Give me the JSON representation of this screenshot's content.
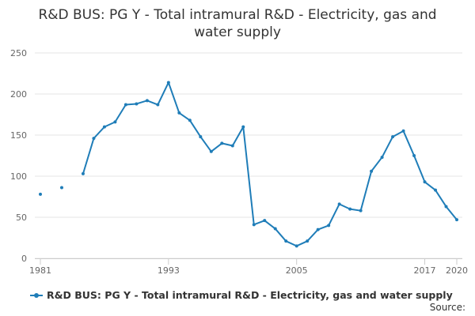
{
  "chart_data": {
    "type": "line",
    "title_line1": "R&D BUS: PG Y - Total intramural R&D - Electricity, gas and",
    "title_line2": "water supply",
    "xlabel": "",
    "ylabel": "",
    "ylim": [
      0,
      250
    ],
    "yticks": [
      "0",
      "50",
      "100",
      "150",
      "200",
      "250"
    ],
    "xticks": [
      "1981",
      "1993",
      "2005",
      "2017",
      "2020"
    ],
    "xlim": [
      1981,
      2020
    ],
    "grid": true,
    "legend_position": "bottom",
    "series": [
      {
        "name": "R&D BUS: PG Y - Total intramural R&D - Electricity, gas and water supply",
        "color": "#1f7db8",
        "points": [
          {
            "x": 1981,
            "y": 78
          },
          {
            "x": 1983,
            "y": 86
          },
          {
            "x": 1985,
            "y": 103
          },
          {
            "x": 1986,
            "y": 146
          },
          {
            "x": 1987,
            "y": 160
          },
          {
            "x": 1988,
            "y": 166
          },
          {
            "x": 1989,
            "y": 187
          },
          {
            "x": 1990,
            "y": 188
          },
          {
            "x": 1991,
            "y": 192
          },
          {
            "x": 1992,
            "y": 187
          },
          {
            "x": 1993,
            "y": 214
          },
          {
            "x": 1994,
            "y": 177
          },
          {
            "x": 1995,
            "y": 168
          },
          {
            "x": 1996,
            "y": 148
          },
          {
            "x": 1997,
            "y": 130
          },
          {
            "x": 1998,
            "y": 140
          },
          {
            "x": 1999,
            "y": 137
          },
          {
            "x": 2000,
            "y": 160
          },
          {
            "x": 2001,
            "y": 41
          },
          {
            "x": 2002,
            "y": 46
          },
          {
            "x": 2003,
            "y": 36
          },
          {
            "x": 2004,
            "y": 21
          },
          {
            "x": 2005,
            "y": 15
          },
          {
            "x": 2006,
            "y": 21
          },
          {
            "x": 2007,
            "y": 35
          },
          {
            "x": 2008,
            "y": 40
          },
          {
            "x": 2009,
            "y": 66
          },
          {
            "x": 2010,
            "y": 60
          },
          {
            "x": 2011,
            "y": 58
          },
          {
            "x": 2012,
            "y": 106
          },
          {
            "x": 2013,
            "y": 123
          },
          {
            "x": 2014,
            "y": 148
          },
          {
            "x": 2015,
            "y": 155
          },
          {
            "x": 2016,
            "y": 125
          },
          {
            "x": 2017,
            "y": 93
          },
          {
            "x": 2018,
            "y": 83
          },
          {
            "x": 2019,
            "y": 63
          },
          {
            "x": 2020,
            "y": 47
          }
        ]
      }
    ]
  },
  "legend": {
    "label": "R&D BUS: PG Y - Total intramural R&D - Electricity, gas and water supply"
  },
  "footer": {
    "source": "Source:"
  }
}
